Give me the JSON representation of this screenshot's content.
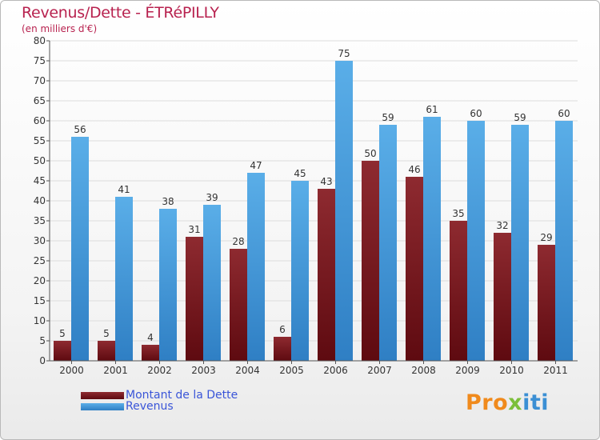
{
  "title": "Revenus/Dette - ÉTRéPILLY",
  "subtitle": "(en milliers d'€)",
  "logo": {
    "text": "Proxiti",
    "parts": [
      "Pro",
      "x",
      "iti"
    ]
  },
  "colors": {
    "dette": "#7a1a1f",
    "revenus": "#4a9fe0",
    "title": "#b8224f",
    "legend_text": "#3a55d8"
  },
  "chart_data": {
    "type": "bar",
    "title": "Revenus/Dette - ÉTRéPILLY",
    "ylabel": "(en milliers d'€)",
    "xlabel": "",
    "ylim": [
      0,
      80
    ],
    "ytick_step": 5,
    "categories": [
      "2000",
      "2001",
      "2002",
      "2003",
      "2004",
      "2005",
      "2006",
      "2007",
      "2008",
      "2009",
      "2010",
      "2011"
    ],
    "series": [
      {
        "name": "Montant de la Dette",
        "values": [
          5,
          5,
          4,
          31,
          28,
          6,
          43,
          50,
          46,
          35,
          32,
          29
        ]
      },
      {
        "name": "Revenus",
        "values": [
          56,
          41,
          38,
          39,
          47,
          45,
          75,
          59,
          61,
          60,
          59,
          60
        ]
      }
    ],
    "legend_position": "bottom-left"
  }
}
